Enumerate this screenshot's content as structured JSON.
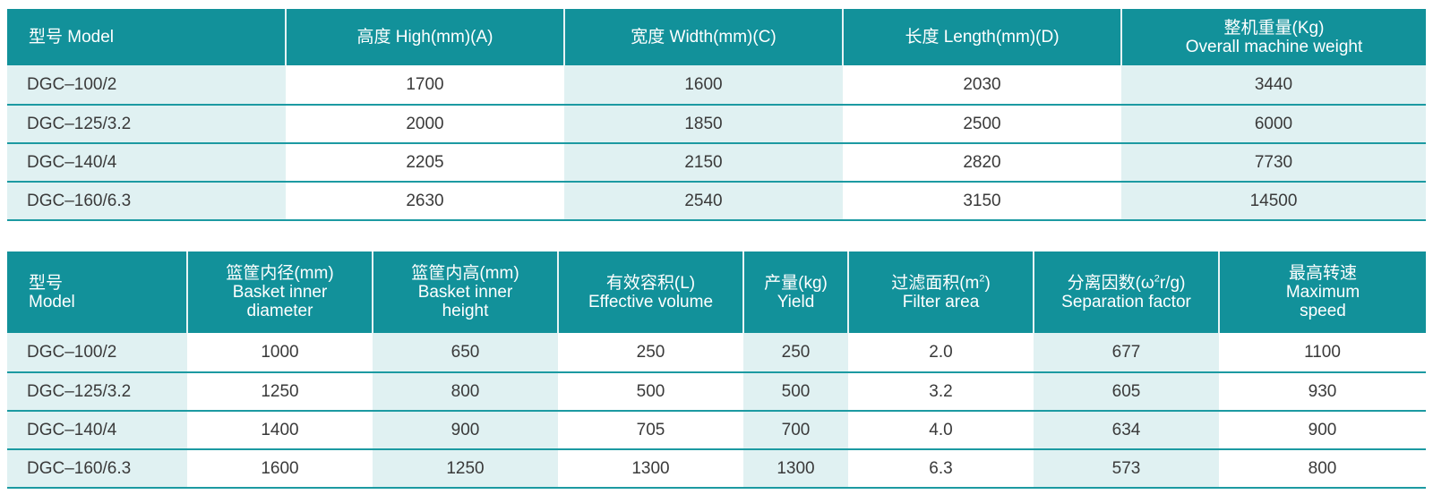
{
  "table1": {
    "headers": [
      {
        "lines": [
          "型号 Model"
        ]
      },
      {
        "lines": [
          "高度 High(mm)(A)"
        ]
      },
      {
        "lines": [
          "宽度 Width(mm)(C)"
        ]
      },
      {
        "lines": [
          "长度 Length(mm)(D)"
        ]
      },
      {
        "lines": [
          "整机重量(Kg)",
          "Overall machine weight"
        ]
      }
    ],
    "rows": [
      [
        "DGC–100/2",
        "1700",
        "1600",
        "2030",
        "3440"
      ],
      [
        "DGC–125/3.2",
        "2000",
        "1850",
        "2500",
        "6000"
      ],
      [
        "DGC–140/4",
        "2205",
        "2150",
        "2820",
        "7730"
      ],
      [
        "DGC–160/6.3",
        "2630",
        "2540",
        "3150",
        "14500"
      ]
    ]
  },
  "table2": {
    "headers": [
      {
        "lines": [
          "型号",
          "Model"
        ]
      },
      {
        "lines": [
          "篮筐内径(mm)",
          "Basket inner",
          "diameter"
        ]
      },
      {
        "lines": [
          "篮筐内高(mm)",
          "Basket inner",
          "height"
        ]
      },
      {
        "lines": [
          "有效容积(L)",
          "Effective volume"
        ]
      },
      {
        "lines": [
          "产量(kg)",
          "Yield"
        ]
      },
      {
        "lines": [
          "过滤面积(m",
          "Filter area"
        ],
        "sup": "2",
        "suffix": ")"
      },
      {
        "lines": [
          "分离因数(ω",
          "Separation factor"
        ],
        "sup": "2",
        "suffix": "r/g)"
      },
      {
        "lines": [
          "最高转速",
          "Maximum",
          "speed"
        ]
      }
    ],
    "rows": [
      [
        "DGC–100/2",
        "1000",
        "650",
        "250",
        "250",
        "2.0",
        "677",
        "1100"
      ],
      [
        "DGC–125/3.2",
        "1250",
        "800",
        "500",
        "500",
        "3.2",
        "605",
        "930"
      ],
      [
        "DGC–140/4",
        "1400",
        "900",
        "705",
        "700",
        "4.0",
        "634",
        "900"
      ],
      [
        "DGC–160/6.3",
        "1600",
        "1250",
        "1300",
        "1300",
        "6.3",
        "573",
        "800"
      ]
    ]
  }
}
